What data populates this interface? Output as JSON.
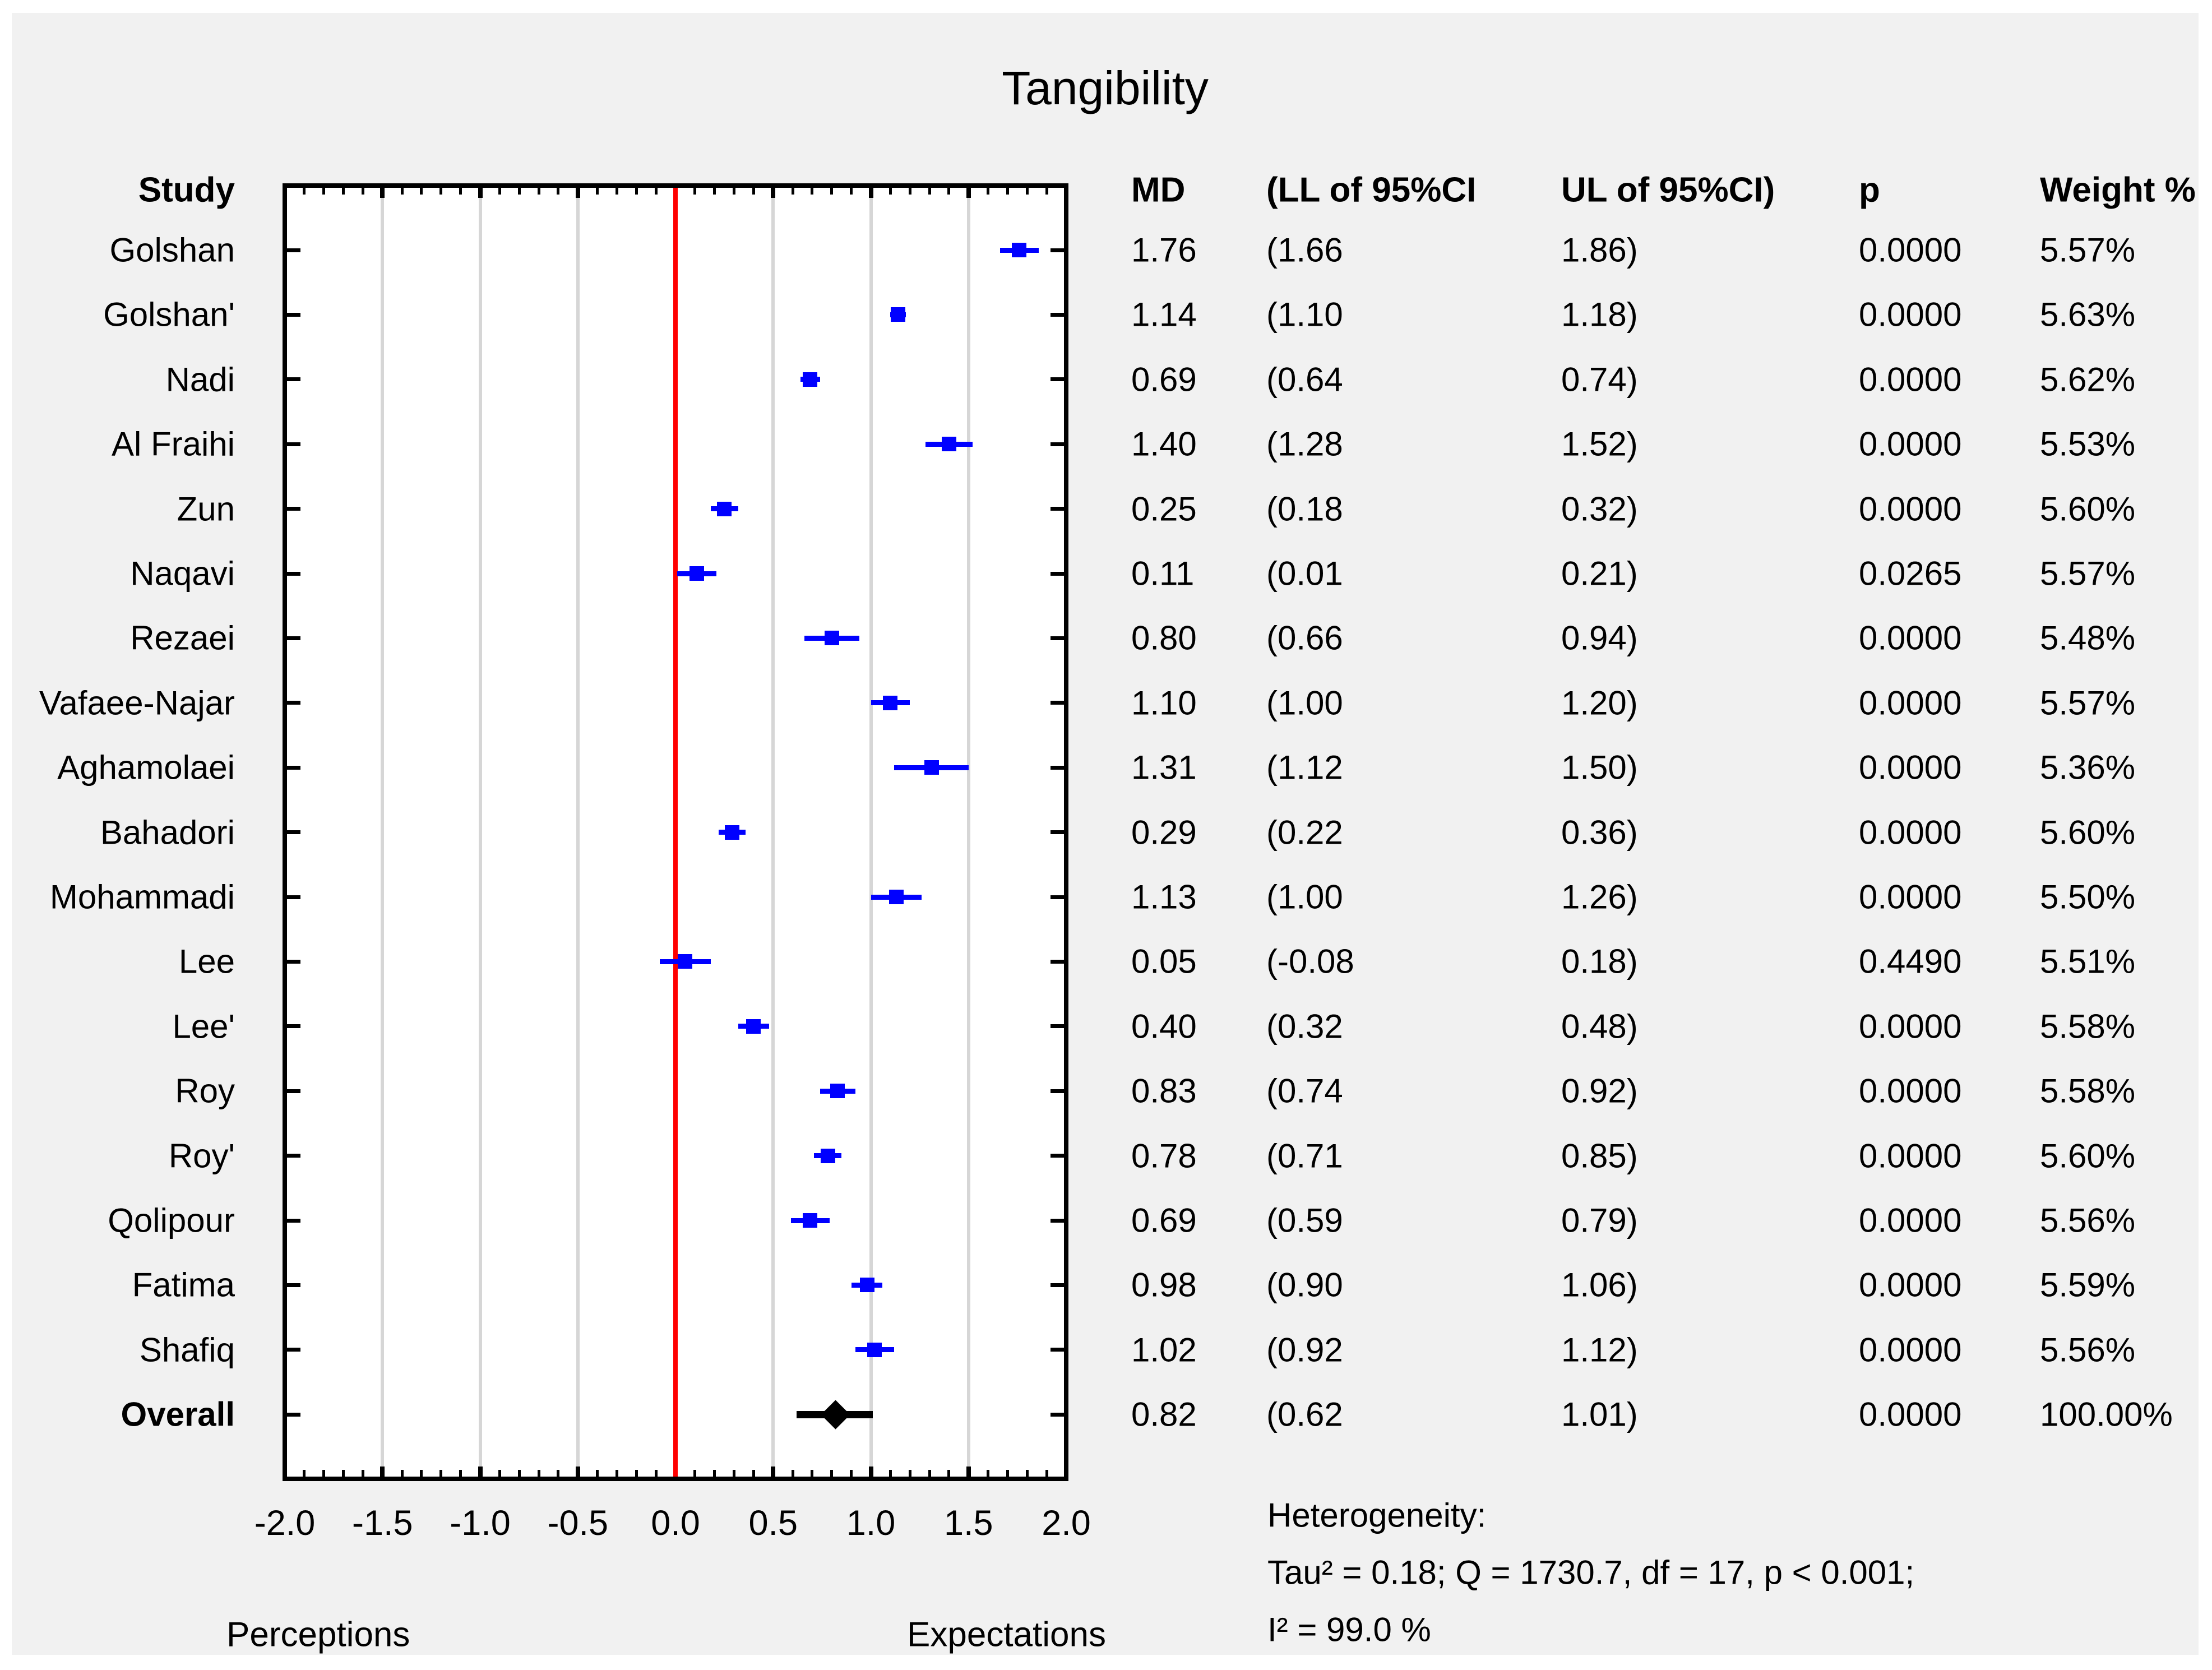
{
  "title": "Tangibility",
  "columns": {
    "study": "Study",
    "md": "MD",
    "ll": "(LL of 95%CI",
    "ul": "UL of 95%CI)",
    "p": "p",
    "weight": "Weight %"
  },
  "chart_data": {
    "type": "forest",
    "title": "Tangibility",
    "x_axis": {
      "min": -2.0,
      "max": 2.0,
      "major_tick_step": 0.5,
      "minor_tick_step": 0.1,
      "tick_labels": [
        "-2.0",
        "-1.5",
        "-1.0",
        "-0.5",
        "0.0",
        "0.5",
        "1.0",
        "1.5",
        "2.0"
      ],
      "tick_values": [
        -2.0,
        -1.5,
        -1.0,
        -0.5,
        0.0,
        0.5,
        1.0,
        1.5,
        2.0
      ],
      "gridline_values": [
        -1.5,
        -1.0,
        -0.5,
        0.5,
        1.0,
        1.5
      ],
      "zero_line_value": 0.0,
      "left_label": "Perceptions",
      "right_label": "Expectations",
      "grid": true
    },
    "studies": [
      {
        "name": "Golshan",
        "md": 1.76,
        "ll": 1.66,
        "ul": 1.86,
        "p": "0.0000",
        "weight": "5.57%"
      },
      {
        "name": "Golshan'",
        "md": 1.14,
        "ll": 1.1,
        "ul": 1.18,
        "p": "0.0000",
        "weight": "5.63%"
      },
      {
        "name": "Nadi",
        "md": 0.69,
        "ll": 0.64,
        "ul": 0.74,
        "p": "0.0000",
        "weight": "5.62%"
      },
      {
        "name": "Al Fraihi",
        "md": 1.4,
        "ll": 1.28,
        "ul": 1.52,
        "p": "0.0000",
        "weight": "5.53%"
      },
      {
        "name": "Zun",
        "md": 0.25,
        "ll": 0.18,
        "ul": 0.32,
        "p": "0.0000",
        "weight": "5.60%"
      },
      {
        "name": "Naqavi",
        "md": 0.11,
        "ll": 0.01,
        "ul": 0.21,
        "p": "0.0265",
        "weight": "5.57%"
      },
      {
        "name": "Rezaei",
        "md": 0.8,
        "ll": 0.66,
        "ul": 0.94,
        "p": "0.0000",
        "weight": "5.48%"
      },
      {
        "name": "Vafaee-Najar",
        "md": 1.1,
        "ll": 1.0,
        "ul": 1.2,
        "p": "0.0000",
        "weight": "5.57%"
      },
      {
        "name": "Aghamolaei",
        "md": 1.31,
        "ll": 1.12,
        "ul": 1.5,
        "p": "0.0000",
        "weight": "5.36%"
      },
      {
        "name": "Bahadori",
        "md": 0.29,
        "ll": 0.22,
        "ul": 0.36,
        "p": "0.0000",
        "weight": "5.60%"
      },
      {
        "name": "Mohammadi",
        "md": 1.13,
        "ll": 1.0,
        "ul": 1.26,
        "p": "0.0000",
        "weight": "5.50%"
      },
      {
        "name": "Lee",
        "md": 0.05,
        "ll": -0.08,
        "ul": 0.18,
        "p": "0.4490",
        "weight": "5.51%"
      },
      {
        "name": "Lee'",
        "md": 0.4,
        "ll": 0.32,
        "ul": 0.48,
        "p": "0.0000",
        "weight": "5.58%"
      },
      {
        "name": "Roy",
        "md": 0.83,
        "ll": 0.74,
        "ul": 0.92,
        "p": "0.0000",
        "weight": "5.58%"
      },
      {
        "name": "Roy'",
        "md": 0.78,
        "ll": 0.71,
        "ul": 0.85,
        "p": "0.0000",
        "weight": "5.60%"
      },
      {
        "name": "Qolipour",
        "md": 0.69,
        "ll": 0.59,
        "ul": 0.79,
        "p": "0.0000",
        "weight": "5.56%"
      },
      {
        "name": "Fatima",
        "md": 0.98,
        "ll": 0.9,
        "ul": 1.06,
        "p": "0.0000",
        "weight": "5.59%"
      },
      {
        "name": "Shafiq",
        "md": 1.02,
        "ll": 0.92,
        "ul": 1.12,
        "p": "0.0000",
        "weight": "5.56%"
      }
    ],
    "overall": {
      "name": "Overall",
      "md": 0.82,
      "ll": 0.62,
      "ul": 1.01,
      "p": "0.0000",
      "weight": "100.00%"
    }
  },
  "heterogeneity": {
    "line1": "Heterogeneity:",
    "line2": "Tau² = 0.18; Q = 1730.7, df = 17, p < 0.001;",
    "line3": "I² = 99.0 %"
  },
  "colors": {
    "marker_blue": "#0000ff",
    "zero_line_red": "#ff0000",
    "overall_black": "#000000",
    "gridline_gray": "#d6d6d6",
    "panel_gray": "#f1f1f1"
  }
}
